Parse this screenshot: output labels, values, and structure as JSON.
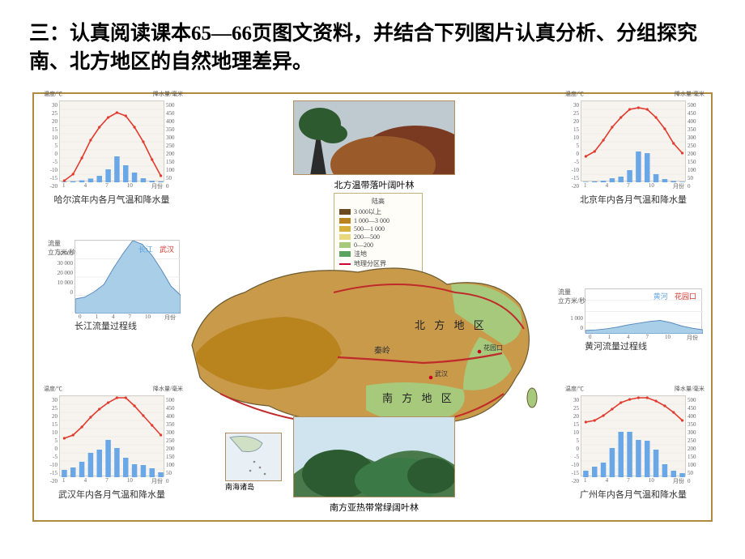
{
  "heading": "三：认真阅读课本65—66页图文资料，并结合下列图片认真分析、分组探究南、北方地区的自然地理差异。",
  "charts": {
    "common": {
      "temp_axis_title": "温度/℃",
      "precip_axis_title": "降水量/毫米",
      "temp_ticks": [
        30,
        25,
        20,
        15,
        10,
        5,
        0,
        -5,
        -10,
        -15,
        -20
      ],
      "precip_ticks": [
        500,
        450,
        400,
        350,
        300,
        250,
        200,
        150,
        100,
        50,
        0
      ],
      "month_ticks": [
        "1",
        "4",
        "7",
        "10",
        "月份"
      ],
      "temp_color": "#e23b2e",
      "precip_color": "#6aa7e6",
      "grid_bg": "#f7f4f0",
      "grid_color": "#e6e2d8"
    },
    "haerbin": {
      "caption": "哈尔滨年内各月气温和降水量",
      "temp": [
        -19,
        -15,
        -5,
        6,
        14,
        20,
        23,
        21,
        14,
        5,
        -6,
        -16
      ],
      "precip": [
        4,
        6,
        12,
        23,
        40,
        80,
        160,
        105,
        60,
        25,
        10,
        5
      ]
    },
    "beijing": {
      "caption": "北京年内各月气温和降水量",
      "temp": [
        -4,
        -1,
        6,
        14,
        20,
        25,
        26,
        25,
        20,
        13,
        4,
        -2
      ],
      "precip": [
        3,
        6,
        10,
        25,
        35,
        75,
        190,
        180,
        50,
        20,
        8,
        3
      ]
    },
    "wuhan": {
      "caption": "武汉年内各月气温和降水量",
      "temp": [
        4,
        6,
        11,
        17,
        22,
        26,
        29,
        29,
        24,
        18,
        12,
        6
      ],
      "precip": [
        45,
        60,
        95,
        150,
        170,
        230,
        180,
        120,
        80,
        75,
        55,
        30
      ]
    },
    "guangzhou": {
      "caption": "广州年内各月气温和降水量",
      "temp": [
        14,
        15,
        18,
        22,
        26,
        28,
        29,
        29,
        27,
        24,
        20,
        15
      ],
      "precip": [
        40,
        65,
        90,
        180,
        280,
        280,
        230,
        225,
        170,
        80,
        40,
        25
      ]
    }
  },
  "discharge": {
    "changjiang": {
      "caption": "长江流量过程线",
      "legend_items": [
        "长江",
        "武汉"
      ],
      "legend_colors": [
        "#5aa1d9",
        "#d6362d"
      ],
      "yaxis_title": "流量\n立方米/秒",
      "yticks": [
        "40 000",
        "30 000",
        "20 000",
        "10 000",
        "0"
      ],
      "xnums": [
        "0",
        "1",
        "4",
        "7",
        "10",
        "月份"
      ],
      "fill_color": "#a9cfe8",
      "values": [
        8000,
        9000,
        12000,
        16000,
        25000,
        33000,
        40000,
        38000,
        32000,
        24000,
        15000,
        10000
      ]
    },
    "huanghe": {
      "caption": "黄河流量过程线",
      "legend_items": [
        "黄河",
        "花园口"
      ],
      "legend_colors": [
        "#6aa7e6",
        "#d6362d"
      ],
      "yaxis_title": "流量\n立方米/秒",
      "yticks": [
        "1 000",
        "0"
      ],
      "xnums": [
        "0",
        "1",
        "4",
        "7",
        "10",
        "月份"
      ],
      "fill_color": "#a9cfe8",
      "values": [
        300,
        350,
        450,
        600,
        800,
        950,
        1100,
        1200,
        1000,
        700,
        500,
        350
      ]
    }
  },
  "photos": {
    "north_forest": {
      "caption": "北方温带落叶阔叶林",
      "sky": "#bfc9d0",
      "foliage1": "#7a3a22",
      "foliage2": "#9a5a2a",
      "trunk": "#2b2b2b",
      "green": "#2e5a2f"
    },
    "south_forest": {
      "caption": "南方亚热带常绿阔叶林",
      "sky": "#cfe4ee",
      "hill": "#4a7a4c",
      "tree1": "#2c5b32",
      "tree2": "#3b7a46"
    },
    "nanhai": {
      "caption": "南海诸岛",
      "bg": "#e9f0f5",
      "land": "#cfe0c4",
      "border": "#8aa0ae"
    }
  },
  "legend": {
    "title_top": "陆高",
    "rows": [
      {
        "color": "#6b4a1f",
        "label": "3 000以上"
      },
      {
        "color": "#b9831e",
        "label": "1 000—3 000"
      },
      {
        "color": "#d6b03a",
        "label": "500—1 000"
      },
      {
        "color": "#e8d97f",
        "label": "200—500"
      },
      {
        "color": "#a6c97c",
        "label": "0—200"
      },
      {
        "color": "#5aa45f",
        "label": "洼地"
      }
    ],
    "boundary": "地理分区界"
  },
  "map": {
    "land_low": "#a6c97c",
    "land_mid": "#d6b03a",
    "land_high": "#b9831e",
    "land_plateau": "#c99a4a",
    "outline": "#6b5a30",
    "boundary_color": "#c02a2a",
    "labels": {
      "qinling": "秦岭",
      "north": "北 方 地 区",
      "south": "南 方 地 区",
      "huayuankou": "花园口",
      "wuhan_dot": "武汉"
    }
  }
}
